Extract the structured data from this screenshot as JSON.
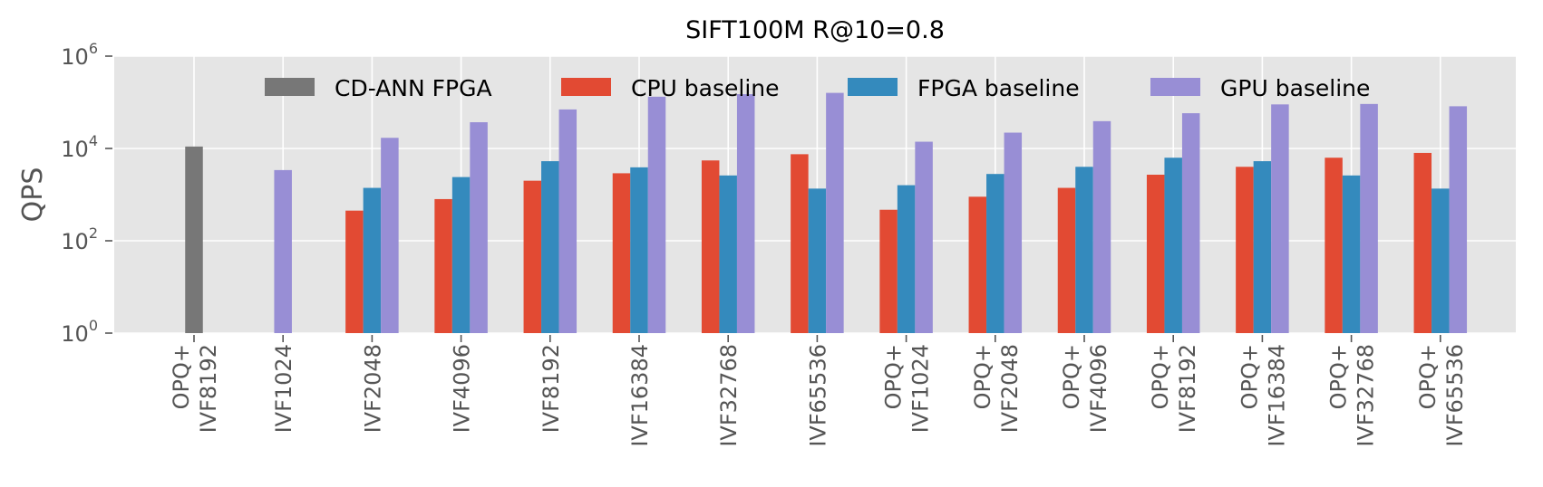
{
  "chart_data": {
    "type": "bar",
    "title": "SIFT100M R@10=0.8",
    "ylabel": "QPS",
    "xlabel": "",
    "yscale": "log",
    "ylim": [
      1,
      1000000
    ],
    "yticks": [
      {
        "value": 1,
        "base": "10",
        "exp": "0"
      },
      {
        "value": 100,
        "base": "10",
        "exp": "2"
      },
      {
        "value": 10000,
        "base": "10",
        "exp": "4"
      },
      {
        "value": 1000000,
        "base": "10",
        "exp": "6"
      }
    ],
    "grid": true,
    "legend_position": "top",
    "categories": [
      [
        "OPQ+",
        "IVF8192"
      ],
      [
        "IVF1024"
      ],
      [
        "IVF2048"
      ],
      [
        "IVF4096"
      ],
      [
        "IVF8192"
      ],
      [
        "IVF16384"
      ],
      [
        "IVF32768"
      ],
      [
        "IVF65536"
      ],
      [
        "OPQ+",
        "IVF1024"
      ],
      [
        "OPQ+",
        "IVF2048"
      ],
      [
        "OPQ+",
        "IVF4096"
      ],
      [
        "OPQ+",
        "IVF8192"
      ],
      [
        "OPQ+",
        "IVF16384"
      ],
      [
        "OPQ+",
        "IVF32768"
      ],
      [
        "OPQ+",
        "IVF65536"
      ]
    ],
    "series": [
      {
        "name": "CD-ANN FPGA",
        "color": "#777777",
        "values": [
          11000,
          null,
          null,
          null,
          null,
          null,
          null,
          null,
          null,
          null,
          null,
          null,
          null,
          null,
          null
        ]
      },
      {
        "name": "CPU baseline",
        "color": "#E24A33",
        "values": [
          null,
          null,
          450,
          800,
          2000,
          2900,
          5500,
          7500,
          470,
          900,
          1400,
          2700,
          4000,
          6300,
          8000
        ]
      },
      {
        "name": "FPGA baseline",
        "color": "#348ABD",
        "values": [
          null,
          null,
          1400,
          2400,
          5300,
          3900,
          2600,
          1350,
          1600,
          2800,
          4000,
          6300,
          5300,
          2600,
          1350
        ]
      },
      {
        "name": "GPU baseline",
        "color": "#988ED5",
        "values": [
          null,
          3400,
          17000,
          37000,
          70000,
          132000,
          150000,
          160000,
          14000,
          22000,
          39000,
          58000,
          90000,
          92000,
          82000
        ]
      }
    ]
  }
}
